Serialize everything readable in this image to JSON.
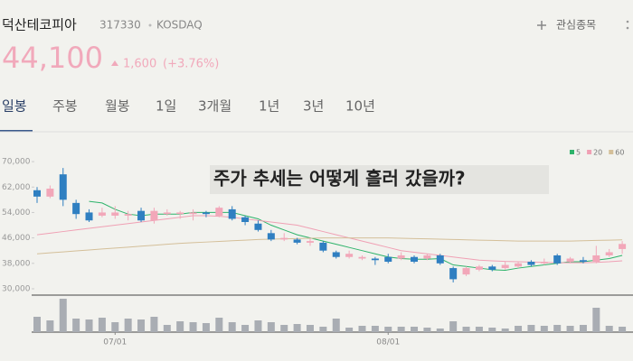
{
  "header": {
    "name": "덕산테코피아",
    "code": "317330",
    "market": "KOSDAQ",
    "watch": "관심종목",
    "price": "44,100",
    "change": "1,600",
    "change_pct": "(+3.76%)"
  },
  "tabs": [
    "일봉",
    "주봉",
    "월봉",
    "1일",
    "3개월",
    "1년",
    "3년",
    "10년"
  ],
  "chart_data": {
    "type": "candlestick",
    "annotation": "주가 추세는 어떻게 흘러 갔을까?",
    "categories": [
      null,
      null,
      null,
      null,
      null,
      null,
      "07/01",
      null,
      null,
      null,
      null,
      null,
      null,
      null,
      null,
      null,
      null,
      null,
      null,
      null,
      null,
      null,
      null,
      null,
      null,
      null,
      null,
      "08/01",
      null,
      null,
      null,
      null,
      null,
      null,
      null,
      null,
      null,
      null,
      null,
      null,
      null,
      null,
      null,
      null,
      null,
      null
    ],
    "open": [
      61000,
      59000,
      66000,
      57000,
      54000,
      53000,
      53000,
      53000,
      54500,
      51500,
      53500,
      53500,
      53500,
      54000,
      53000,
      55000,
      52500,
      50500,
      47500,
      45500,
      45500,
      44500,
      44500,
      41500,
      40000,
      39500,
      39500,
      40000,
      39500,
      40000,
      39500,
      40500,
      36500,
      34500,
      36000,
      37000,
      36500,
      37000,
      38500,
      38000,
      40500,
      38500,
      39000,
      38500,
      40500,
      42500
    ],
    "high": [
      62000,
      62500,
      68000,
      58000,
      55000,
      55500,
      56000,
      54500,
      55500,
      55500,
      55000,
      54500,
      55000,
      54500,
      56000,
      56000,
      53000,
      51500,
      48500,
      47500,
      46000,
      46000,
      45000,
      42000,
      42000,
      40500,
      40000,
      41000,
      41500,
      40500,
      41000,
      41000,
      37000,
      37000,
      37500,
      37500,
      38500,
      38500,
      39000,
      39500,
      41000,
      40000,
      40000,
      43500,
      42500,
      45000
    ],
    "low": [
      57000,
      58500,
      56000,
      52000,
      51000,
      52500,
      52000,
      51500,
      51000,
      50500,
      53000,
      52000,
      51500,
      52500,
      52500,
      51500,
      50000,
      48000,
      45000,
      45000,
      44000,
      43500,
      41500,
      39500,
      39500,
      39000,
      37500,
      38000,
      39000,
      38000,
      39000,
      37500,
      32000,
      34000,
      35500,
      35500,
      36000,
      36500,
      37000,
      37500,
      37500,
      38000,
      38000,
      38000,
      40000,
      41000
    ],
    "close": [
      59000,
      61500,
      58000,
      53500,
      51500,
      54000,
      54000,
      53500,
      51500,
      54500,
      54000,
      54000,
      54000,
      53500,
      55500,
      52000,
      51000,
      48500,
      45500,
      46000,
      44500,
      45000,
      42000,
      40000,
      41000,
      40000,
      39000,
      38500,
      40500,
      38500,
      40500,
      38000,
      33000,
      36500,
      37000,
      36000,
      37500,
      38000,
      37500,
      38500,
      38000,
      39500,
      38500,
      40500,
      41500,
      44100
    ],
    "up_color": "#f2a7b9",
    "down_color": "#2f7fc1",
    "series": [
      {
        "name": "5",
        "color": "#2db36a",
        "values": [
          null,
          null,
          null,
          null,
          57500,
          57000,
          55000,
          53500,
          53000,
          53500,
          53500,
          53500,
          54000,
          54000,
          54000,
          54000,
          53000,
          52000,
          50000,
          48500,
          47000,
          46000,
          45000,
          44000,
          43000,
          42000,
          41000,
          40000,
          39500,
          39300,
          39300,
          39500,
          37500,
          37000,
          36500,
          36000,
          35800,
          36500,
          37000,
          37500,
          38000,
          38500,
          38500,
          39000,
          39500,
          40500
        ]
      },
      {
        "name": "20",
        "color": "#f0a0b4",
        "values": [
          47000,
          47500,
          48000,
          48500,
          49000,
          49500,
          50000,
          50500,
          51000,
          51500,
          52000,
          52500,
          53000,
          53000,
          52800,
          52500,
          52000,
          51500,
          51000,
          50500,
          50000,
          49000,
          48000,
          47000,
          46000,
          45000,
          44000,
          43000,
          42000,
          41500,
          41000,
          40500,
          40000,
          39500,
          39000,
          38800,
          38600,
          38500,
          38400,
          38300,
          38200,
          38200,
          38200,
          38300,
          38500,
          38800
        ]
      },
      {
        "name": "60",
        "color": "#d4bf99",
        "values": [
          41000,
          41300,
          41600,
          41900,
          42200,
          42500,
          42800,
          43100,
          43400,
          43700,
          44000,
          44300,
          44500,
          44700,
          44900,
          45100,
          45300,
          45500,
          45600,
          45700,
          45800,
          45900,
          46000,
          46000,
          46000,
          46000,
          46000,
          46000,
          45900,
          45800,
          45700,
          45600,
          45500,
          45400,
          45300,
          45200,
          45100,
          45000,
          45000,
          45000,
          45000,
          45000,
          45100,
          45200,
          45300,
          45400
        ]
      }
    ],
    "volume": [
      17,
      13,
      37,
      15,
      14,
      16,
      11,
      15,
      14,
      17,
      8,
      12,
      11,
      10,
      16,
      11,
      8,
      13,
      11,
      8,
      9,
      8,
      6,
      15,
      5,
      7,
      7,
      6,
      6,
      6,
      5,
      4,
      12,
      6,
      6,
      5,
      4,
      7,
      8,
      7,
      8,
      7,
      8,
      27,
      7,
      6
    ],
    "volume_color": "#a9adb3",
    "vlim": [
      0,
      40
    ],
    "ylim": [
      28000,
      74000
    ],
    "yticks": [
      {
        "value": 30000,
        "label": "30,000"
      },
      {
        "value": 38000,
        "label": "38,000"
      },
      {
        "value": 46000,
        "label": "46,000"
      },
      {
        "value": 54000,
        "label": "54,000"
      },
      {
        "value": 62000,
        "label": "62,000"
      },
      {
        "value": 70000,
        "label": "70,000"
      }
    ]
  }
}
